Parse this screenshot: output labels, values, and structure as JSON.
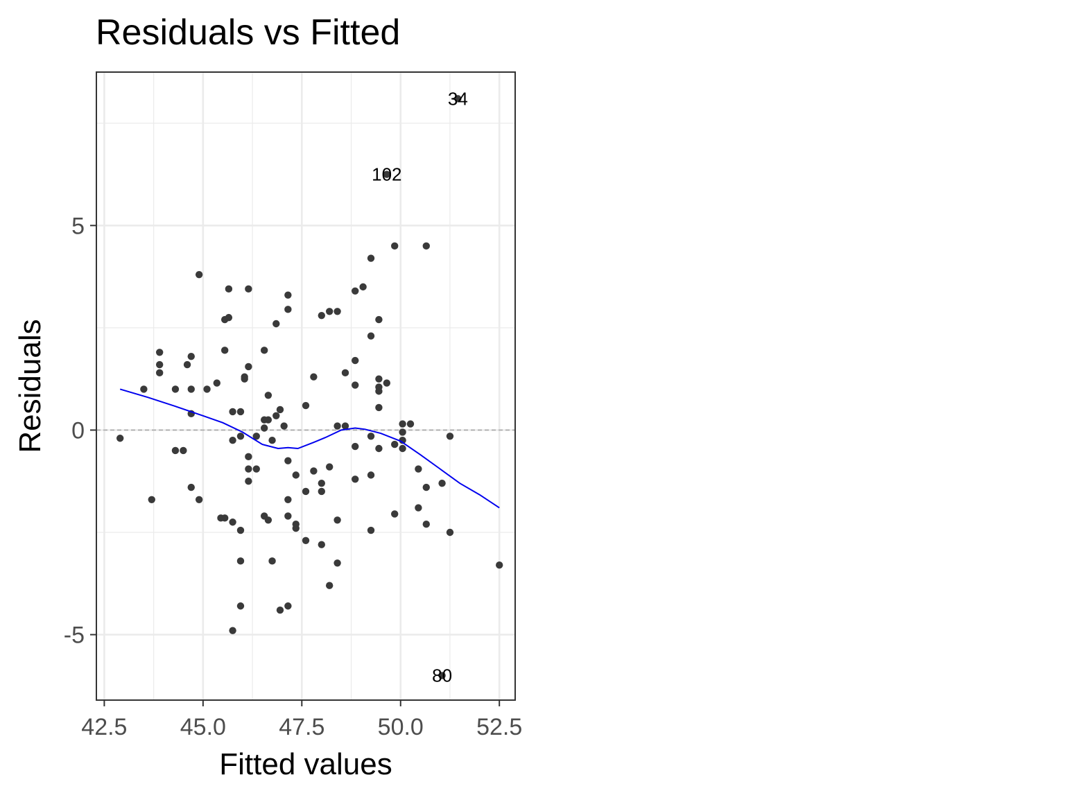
{
  "chart_data": {
    "type": "scatter",
    "title": "Residuals vs Fitted",
    "xlabel": "Fitted values",
    "ylabel": "Residuals",
    "xlim": [
      42.3,
      52.9
    ],
    "ylim": [
      -6.6,
      8.75
    ],
    "x_ticks": [
      42.5,
      45.0,
      47.5,
      50.0,
      52.5
    ],
    "x_tick_labels": [
      "42.5",
      "45.0",
      "47.5",
      "50.0",
      "52.5"
    ],
    "y_ticks": [
      -5,
      0,
      5
    ],
    "y_tick_labels": [
      "-5",
      "0",
      "5"
    ],
    "grid": true,
    "reference_line": {
      "y": 0,
      "style": "dashed",
      "color": "#aaaaaa"
    },
    "colors": {
      "points": "#3a3a3a",
      "smooth": "#0000ee",
      "panel_border": "#333333",
      "grid": "#ebebeb"
    },
    "points": [
      {
        "x": 42.9,
        "y": -0.2
      },
      {
        "x": 43.5,
        "y": 1.0
      },
      {
        "x": 43.7,
        "y": -1.7
      },
      {
        "x": 43.9,
        "y": 1.9
      },
      {
        "x": 43.9,
        "y": 1.6
      },
      {
        "x": 43.9,
        "y": 1.4
      },
      {
        "x": 44.3,
        "y": 1.0
      },
      {
        "x": 44.3,
        "y": -0.5
      },
      {
        "x": 44.5,
        "y": -0.5
      },
      {
        "x": 44.6,
        "y": 1.6
      },
      {
        "x": 44.7,
        "y": 1.8
      },
      {
        "x": 44.7,
        "y": 1.0
      },
      {
        "x": 44.7,
        "y": 0.4
      },
      {
        "x": 44.7,
        "y": -1.4
      },
      {
        "x": 44.9,
        "y": 3.8
      },
      {
        "x": 44.9,
        "y": -1.7
      },
      {
        "x": 45.1,
        "y": 1.0
      },
      {
        "x": 45.35,
        "y": 1.15
      },
      {
        "x": 45.45,
        "y": -2.15
      },
      {
        "x": 45.55,
        "y": -2.15
      },
      {
        "x": 45.55,
        "y": 2.7
      },
      {
        "x": 45.55,
        "y": 1.95
      },
      {
        "x": 45.65,
        "y": 3.45
      },
      {
        "x": 45.65,
        "y": 2.75
      },
      {
        "x": 45.75,
        "y": 0.45
      },
      {
        "x": 45.75,
        "y": -0.25
      },
      {
        "x": 45.75,
        "y": -2.25
      },
      {
        "x": 45.75,
        "y": -4.9
      },
      {
        "x": 45.95,
        "y": 0.45
      },
      {
        "x": 45.95,
        "y": -0.15
      },
      {
        "x": 45.95,
        "y": -2.45
      },
      {
        "x": 45.95,
        "y": -3.2
      },
      {
        "x": 45.95,
        "y": -4.3
      },
      {
        "x": 46.05,
        "y": 1.3
      },
      {
        "x": 46.05,
        "y": 1.25
      },
      {
        "x": 46.15,
        "y": 3.45
      },
      {
        "x": 46.15,
        "y": 1.55
      },
      {
        "x": 46.15,
        "y": -0.65
      },
      {
        "x": 46.15,
        "y": -0.95
      },
      {
        "x": 46.15,
        "y": -1.25
      },
      {
        "x": 46.35,
        "y": -0.15
      },
      {
        "x": 46.35,
        "y": -0.95
      },
      {
        "x": 46.55,
        "y": 1.95
      },
      {
        "x": 46.55,
        "y": 0.25
      },
      {
        "x": 46.55,
        "y": 0.05
      },
      {
        "x": 46.55,
        "y": -2.1
      },
      {
        "x": 46.65,
        "y": 0.85
      },
      {
        "x": 46.65,
        "y": 0.25
      },
      {
        "x": 46.65,
        "y": -2.2
      },
      {
        "x": 46.75,
        "y": -0.25
      },
      {
        "x": 46.75,
        "y": -3.2
      },
      {
        "x": 46.85,
        "y": 2.6
      },
      {
        "x": 46.85,
        "y": 0.35
      },
      {
        "x": 46.95,
        "y": 0.5
      },
      {
        "x": 46.95,
        "y": -4.4
      },
      {
        "x": 47.05,
        "y": 0.1
      },
      {
        "x": 47.15,
        "y": 3.3
      },
      {
        "x": 47.15,
        "y": 2.95
      },
      {
        "x": 47.15,
        "y": -0.75
      },
      {
        "x": 47.15,
        "y": -1.7
      },
      {
        "x": 47.15,
        "y": -2.1
      },
      {
        "x": 47.15,
        "y": -4.3
      },
      {
        "x": 47.35,
        "y": -1.1
      },
      {
        "x": 47.35,
        "y": -2.3
      },
      {
        "x": 47.35,
        "y": -2.4
      },
      {
        "x": 47.6,
        "y": 0.6
      },
      {
        "x": 47.6,
        "y": -1.5
      },
      {
        "x": 47.6,
        "y": -2.7
      },
      {
        "x": 47.8,
        "y": 1.3
      },
      {
        "x": 47.8,
        "y": -1.0
      },
      {
        "x": 48.0,
        "y": 2.8
      },
      {
        "x": 48.0,
        "y": -1.3
      },
      {
        "x": 48.0,
        "y": -1.5
      },
      {
        "x": 48.0,
        "y": -2.8
      },
      {
        "x": 48.2,
        "y": 2.9
      },
      {
        "x": 48.2,
        "y": -0.9
      },
      {
        "x": 48.2,
        "y": -3.8
      },
      {
        "x": 48.4,
        "y": 2.9
      },
      {
        "x": 48.4,
        "y": 0.1
      },
      {
        "x": 48.4,
        "y": -2.2
      },
      {
        "x": 48.4,
        "y": -3.25
      },
      {
        "x": 48.6,
        "y": 1.4
      },
      {
        "x": 48.6,
        "y": 0.1
      },
      {
        "x": 48.85,
        "y": 3.4
      },
      {
        "x": 48.85,
        "y": 1.7
      },
      {
        "x": 48.85,
        "y": 1.1
      },
      {
        "x": 48.85,
        "y": -0.4
      },
      {
        "x": 48.85,
        "y": -1.2
      },
      {
        "x": 49.05,
        "y": 3.5
      },
      {
        "x": 49.25,
        "y": 4.2
      },
      {
        "x": 49.25,
        "y": 2.3
      },
      {
        "x": 49.25,
        "y": -0.15
      },
      {
        "x": 49.25,
        "y": -1.1
      },
      {
        "x": 49.25,
        "y": -2.45
      },
      {
        "x": 49.45,
        "y": 2.7
      },
      {
        "x": 49.45,
        "y": 1.25
      },
      {
        "x": 49.45,
        "y": 1.05
      },
      {
        "x": 49.45,
        "y": 0.95
      },
      {
        "x": 49.45,
        "y": 0.55
      },
      {
        "x": 49.45,
        "y": -0.45
      },
      {
        "x": 49.65,
        "y": 1.15
      },
      {
        "x": 49.65,
        "y": 6.25,
        "label": "102"
      },
      {
        "x": 49.85,
        "y": 4.5
      },
      {
        "x": 49.85,
        "y": -0.35
      },
      {
        "x": 49.85,
        "y": -2.05
      },
      {
        "x": 50.05,
        "y": 0.15
      },
      {
        "x": 50.05,
        "y": -0.05
      },
      {
        "x": 50.05,
        "y": -0.25
      },
      {
        "x": 50.05,
        "y": -0.45
      },
      {
        "x": 50.25,
        "y": 0.15
      },
      {
        "x": 50.45,
        "y": -0.95
      },
      {
        "x": 50.45,
        "y": -1.9
      },
      {
        "x": 50.65,
        "y": 4.5
      },
      {
        "x": 50.65,
        "y": -1.4
      },
      {
        "x": 50.65,
        "y": -2.3
      },
      {
        "x": 51.05,
        "y": -6.0,
        "label": "80"
      },
      {
        "x": 51.05,
        "y": -1.3
      },
      {
        "x": 51.25,
        "y": -0.15
      },
      {
        "x": 51.25,
        "y": -2.5
      },
      {
        "x": 51.45,
        "y": 8.1,
        "label": "34"
      },
      {
        "x": 52.5,
        "y": -3.3
      }
    ],
    "smooth_line": {
      "color": "#0000ee",
      "x": [
        42.9,
        43.6,
        44.3,
        45.0,
        45.5,
        46.0,
        46.5,
        46.9,
        47.15,
        47.4,
        47.8,
        48.1,
        48.5,
        48.85,
        49.1,
        49.5,
        50.0,
        50.5,
        51.0,
        51.5,
        52.0,
        52.5
      ],
      "y": [
        1.0,
        0.8,
        0.58,
        0.35,
        0.18,
        -0.05,
        -0.35,
        -0.45,
        -0.43,
        -0.45,
        -0.3,
        -0.18,
        0.0,
        0.05,
        0.02,
        -0.08,
        -0.27,
        -0.6,
        -0.95,
        -1.3,
        -1.58,
        -1.9
      ]
    }
  }
}
